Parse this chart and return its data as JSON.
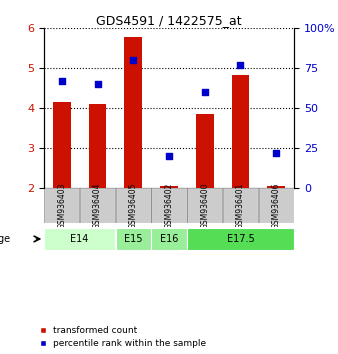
{
  "title": "GDS4591 / 1422575_at",
  "samples": [
    "GSM936403",
    "GSM936404",
    "GSM936405",
    "GSM936402",
    "GSM936400",
    "GSM936401",
    "GSM936406"
  ],
  "transformed_counts": [
    4.15,
    4.1,
    5.78,
    2.05,
    3.85,
    4.83,
    2.05
  ],
  "percentile_ranks": [
    67,
    65,
    80,
    20,
    60,
    77,
    22
  ],
  "ylim_left": [
    2,
    6
  ],
  "ylim_right": [
    0,
    100
  ],
  "yticks_left": [
    2,
    3,
    4,
    5,
    6
  ],
  "yticks_right": [
    0,
    25,
    50,
    75,
    100
  ],
  "bar_color": "#cc1100",
  "dot_color": "#0000cc",
  "bar_bottom": 2.0,
  "age_groups": [
    {
      "label": "E14",
      "start": 0,
      "end": 1,
      "color": "#ccffcc"
    },
    {
      "label": "E15",
      "start": 2,
      "end": 2,
      "color": "#99ee99"
    },
    {
      "label": "E16",
      "start": 3,
      "end": 3,
      "color": "#99ee99"
    },
    {
      "label": "E17.5",
      "start": 4,
      "end": 6,
      "color": "#55dd55"
    }
  ],
  "age_group_spans": [
    {
      "label": "E14",
      "cols": [
        0,
        1
      ],
      "color": "#ccffcc"
    },
    {
      "label": "E15",
      "cols": [
        2,
        2
      ],
      "color": "#99ee99"
    },
    {
      "label": "E16",
      "cols": [
        3,
        3
      ],
      "color": "#99ee99"
    },
    {
      "label": "E17.5",
      "cols": [
        4,
        6
      ],
      "color": "#55dd55"
    }
  ],
  "sample_box_color": "#cccccc",
  "background_color": "#ffffff",
  "left_axis_color": "#cc1100",
  "right_axis_color": "#0000cc",
  "legend_items": [
    {
      "label": "transformed count",
      "color": "#cc1100"
    },
    {
      "label": "percentile rank within the sample",
      "color": "#0000cc"
    }
  ]
}
